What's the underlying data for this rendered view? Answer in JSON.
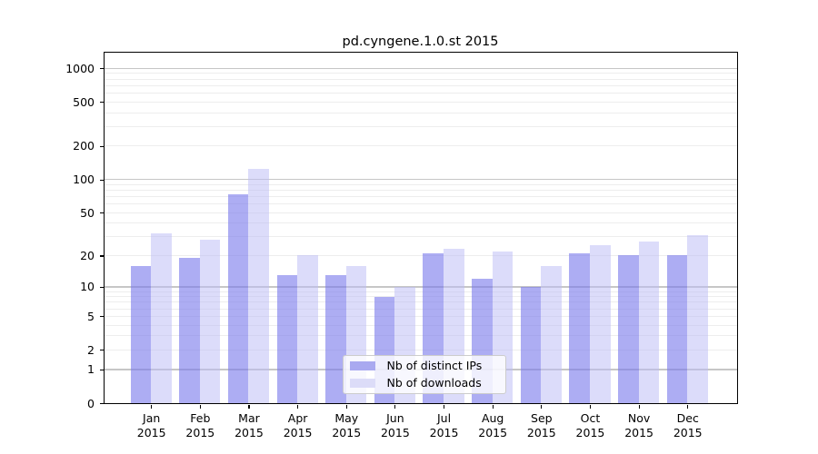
{
  "chart_data": {
    "type": "bar",
    "title": "pd.cyngene.1.0.st 2015",
    "categories": [
      "Jan",
      "Feb",
      "Mar",
      "Apr",
      "May",
      "Jun",
      "Jul",
      "Aug",
      "Sep",
      "Oct",
      "Nov",
      "Dec"
    ],
    "category_year": "2015",
    "series": [
      {
        "name": "Nb of distinct IPs",
        "color": "#a9a9f0",
        "fill": "rgba(122,122,235,0.62)",
        "values": [
          16,
          19,
          74,
          13,
          13,
          8,
          21,
          12,
          10,
          21,
          20,
          20
        ]
      },
      {
        "name": "Nb of downloads",
        "color": "#dcdcf8",
        "fill": "rgba(187,187,245,0.52)",
        "values": [
          32,
          28,
          125,
          20,
          16,
          10,
          23,
          22,
          16,
          25,
          27,
          31
        ]
      }
    ],
    "xlabel": "",
    "ylabel": "",
    "yscale": "log1p",
    "ylim": [
      0,
      1380
    ],
    "yticks": [
      1000,
      500,
      200,
      100,
      50,
      20,
      10,
      5,
      2,
      1,
      0
    ],
    "grid": {
      "major": [
        1,
        10,
        100,
        1000
      ],
      "minor": [
        2,
        3,
        4,
        5,
        6,
        7,
        8,
        9,
        20,
        30,
        40,
        50,
        60,
        70,
        80,
        90,
        200,
        300,
        400,
        500,
        600,
        700,
        800,
        900
      ],
      "major_color": "#c6c6c6",
      "minor_color": "#ededed"
    },
    "legend": {
      "position": "lower center inside",
      "background": "rgba(255,255,255,0.8)",
      "border_color": "#cccccc"
    }
  }
}
